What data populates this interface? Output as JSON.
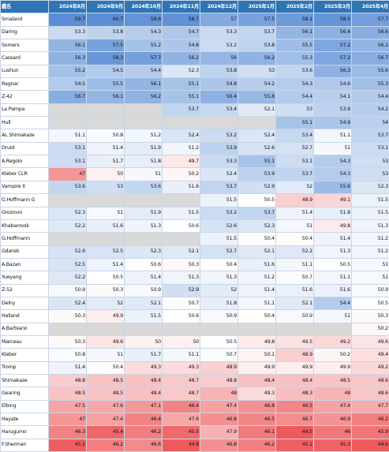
{
  "header": {
    "name_col": "艦名",
    "months": [
      "2024年8月",
      "2024年9月",
      "2024年10月",
      "2024年11月",
      "2024年12月",
      "2025年1月",
      "2025年2月",
      "2025年3月",
      "2025年4月"
    ]
  },
  "colors": {
    "header_bg": "#2f75b5",
    "scale_high": "#5b8ed6",
    "scale_mid": "#ffffff",
    "scale_low": "#ee5a5c",
    "empty_row": "#d9d9d9"
  },
  "scale": {
    "low": 45,
    "mid": 50.5,
    "high": 59
  },
  "rows": [
    {
      "name": "Smaland",
      "values": [
        "59.7",
        "60.7",
        "58.6",
        "58.7",
        "57",
        "57.5",
        "58.1",
        "58.5",
        "57.7"
      ]
    },
    {
      "name": "Daring",
      "values": [
        "53.3",
        "53.8",
        "54.3",
        "54.7",
        "53.3",
        "53.7",
        "56.1",
        "56.4",
        "56.6"
      ]
    },
    {
      "name": "Somers",
      "values": [
        "56.1",
        "57.5",
        "55.2",
        "54.8",
        "53.2",
        "53.8",
        "55.5",
        "57.2",
        "56.1"
      ]
    },
    {
      "name": "Cassard",
      "values": [
        "56.3",
        "58.3",
        "57.7",
        "56.2",
        "56",
        "56.2",
        "55.3",
        "57.2",
        "56.7"
      ]
    },
    {
      "name": "Lushun",
      "values": [
        "55.2",
        "54.5",
        "54.4",
        "52.3",
        "53.8",
        "53",
        "53.6",
        "56.3",
        "55.6"
      ]
    },
    {
      "name": "Ragnar",
      "values": [
        "54.5",
        "55.5",
        "56.1",
        "55.1",
        "54.8",
        "54.2",
        "54.3",
        "54.6",
        "55.3"
      ]
    },
    {
      "name": "Z-42",
      "values": [
        "56.7",
        "56.1",
        "56.2",
        "55.1",
        "56.4",
        "55.8",
        "54.4",
        "54.1",
        "54.4"
      ]
    },
    {
      "name": "La Pampa",
      "values": [
        "",
        "",
        "",
        "53.7",
        "53.4",
        "52.1",
        "53",
        "53.9",
        "54.2"
      ]
    },
    {
      "name": "Hull",
      "values": [
        "",
        "",
        "",
        "",
        "",
        "",
        "55.1",
        "54.9",
        "54"
      ]
    },
    {
      "name": "AL Shimakaze",
      "values": [
        "51.1",
        "50.8",
        "51.2",
        "52.4",
        "53.2",
        "52.4",
        "53.4",
        "51.1",
        "53.7"
      ]
    },
    {
      "name": "Druid",
      "values": [
        "53.1",
        "51.4",
        "51.9",
        "51.2",
        "53.9",
        "52.6",
        "52.7",
        "51",
        "53.1"
      ]
    },
    {
      "name": "A.Regolo",
      "values": [
        "53.1",
        "51.7",
        "51.8",
        "49.7",
        "53.3",
        "55.1",
        "53.1",
        "54.3",
        "53"
      ]
    },
    {
      "name": "Kleber CLR",
      "values": [
        "47",
        "50",
        "51",
        "50.2",
        "52.4",
        "53.9",
        "53.7",
        "54.3",
        "53"
      ]
    },
    {
      "name": "Vampire II",
      "values": [
        "53.6",
        "53",
        "53.6",
        "51.6",
        "53.7",
        "52.9",
        "52",
        "55.6",
        "52.3"
      ]
    },
    {
      "name": "G.Hoffmann G",
      "values": [
        "",
        "",
        "",
        "",
        "51.5",
        "50.5",
        "48.9",
        "49.1",
        "51.5"
      ]
    },
    {
      "name": "Grozovoi",
      "values": [
        "52.3",
        "51",
        "51.9",
        "51.5",
        "53.2",
        "53.7",
        "51.4",
        "51.8",
        "51.5"
      ]
    },
    {
      "name": "Khabarovsk",
      "values": [
        "52.2",
        "51.6",
        "51.3",
        "50.6",
        "52.6",
        "52.3",
        "51",
        "49.8",
        "51.3"
      ]
    },
    {
      "name": "G.Hoffmann",
      "values": [
        "",
        "",
        "",
        "",
        "51.5",
        "50.4",
        "50.4",
        "51.4",
        "51.2"
      ]
    },
    {
      "name": "Gdansk",
      "values": [
        "52.6",
        "52.5",
        "52.3",
        "52.1",
        "52.7",
        "52.1",
        "52.2",
        "51.3",
        "51.2"
      ]
    },
    {
      "name": "A.Bazan",
      "values": [
        "52.5",
        "51.4",
        "50.6",
        "50.3",
        "50.4",
        "51.6",
        "51.1",
        "50.5",
        "51"
      ]
    },
    {
      "name": "Yueyang",
      "values": [
        "52.2",
        "50.5",
        "51.4",
        "51.3",
        "51.3",
        "51.2",
        "50.7",
        "51.1",
        "51"
      ]
    },
    {
      "name": "Z-52",
      "values": [
        "50.9",
        "50.3",
        "50.9",
        "52.9",
        "52",
        "51.4",
        "51.6",
        "51.6",
        "50.9"
      ]
    },
    {
      "name": "Delny",
      "values": [
        "52.4",
        "52",
        "52.1",
        "50.7",
        "51.8",
        "51.1",
        "52.1",
        "54.4",
        "50.5"
      ]
    },
    {
      "name": "Halland",
      "values": [
        "50.3",
        "49.9",
        "51.5",
        "50.6",
        "50.9",
        "50.4",
        "50.9",
        "51",
        "50.3"
      ]
    },
    {
      "name": "A.Barbiano",
      "values": [
        "",
        "",
        "",
        "",
        "",
        "",
        "",
        "",
        "50.2"
      ]
    },
    {
      "name": "Marceau",
      "values": [
        "50.3",
        "49.6",
        "50",
        "50",
        "50.5",
        "49.8",
        "49.5",
        "49.2",
        "49.6"
      ]
    },
    {
      "name": "Kleber",
      "values": [
        "50.8",
        "51",
        "51.7",
        "51.1",
        "50.7",
        "50.1",
        "48.9",
        "50.2",
        "49.4"
      ]
    },
    {
      "name": "Tromp",
      "values": [
        "51.4",
        "50.4",
        "49.3",
        "49.3",
        "48.9",
        "49.9",
        "49.9",
        "49.9",
        "49.2"
      ]
    },
    {
      "name": "Shimakaze",
      "values": [
        "48.8",
        "48.5",
        "48.4",
        "48.7",
        "48.8",
        "48.4",
        "48.4",
        "48.5",
        "48.6"
      ]
    },
    {
      "name": "Gearing",
      "values": [
        "48.5",
        "48.5",
        "48.4",
        "48.7",
        "48",
        "49.3",
        "48.3",
        "48",
        "48.6"
      ]
    },
    {
      "name": "Elbing",
      "values": [
        "47.5",
        "47.6",
        "47.1",
        "46.4",
        "47.4",
        "46.8",
        "46.5",
        "47.4",
        "47.7"
      ]
    },
    {
      "name": "Hayate",
      "values": [
        "47",
        "47.4",
        "46.4",
        "47.6",
        "46.8",
        "46.5",
        "46.7",
        "46.9",
        "46.2"
      ]
    },
    {
      "name": "Harugumo",
      "values": [
        "46.3",
        "45.4",
        "46.2",
        "45.5",
        "47.9",
        "46.1",
        "44.5",
        "46",
        "45.9"
      ]
    },
    {
      "name": "F.Sherman",
      "values": [
        "45.1",
        "46.2",
        "46.6",
        "44.8",
        "46.8",
        "46.2",
        "45.2",
        "45.3",
        "44.6"
      ]
    }
  ]
}
